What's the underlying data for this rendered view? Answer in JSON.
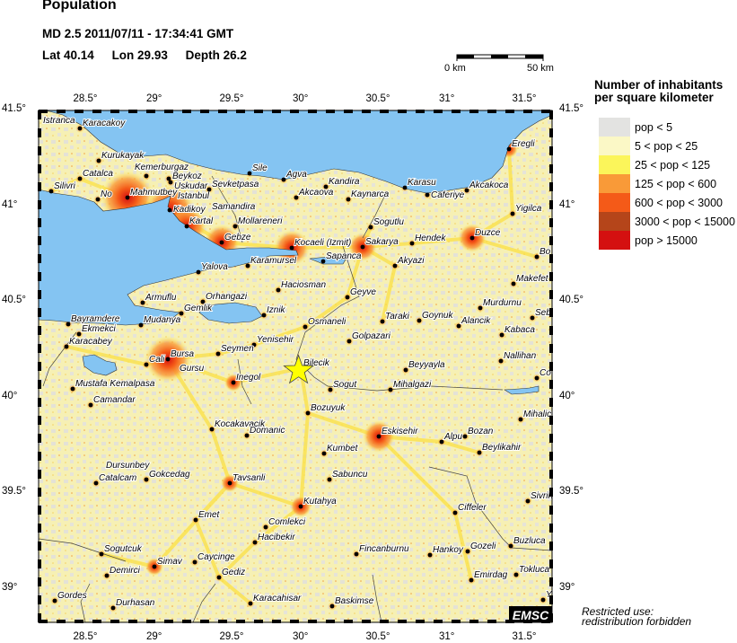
{
  "header": {
    "title": "Population",
    "event_line": "MD 2.5  2011/07/11 - 17:34:41 GMT",
    "lat_label": "Lat 40.14",
    "lon_label": "Lon  29.93",
    "depth_label": "Depth  26.2"
  },
  "scale_bar": {
    "start_label": "0 km",
    "end_label": "50 km"
  },
  "map": {
    "lon_ticks": [
      "28.5°",
      "29°",
      "29.5°",
      "30°",
      "30.5°",
      "31°",
      "31.5°"
    ],
    "lat_ticks": [
      "41.5°",
      "41°",
      "40.5°",
      "40°",
      "39.5°",
      "39°"
    ],
    "epicenter": {
      "lat": 40.14,
      "lon": 29.93,
      "marker": "star-icon",
      "color": "#ffff00"
    },
    "colors": {
      "sea": "#84c4f2",
      "land_base": "#f6f0b4",
      "border": "#000000"
    },
    "cities": [
      "Istranca",
      "Karacakoy",
      "Kurukayak",
      "Catalca",
      "Silivri",
      "No",
      "Mahmutbey",
      "Kemerburgaz",
      "Beykoz",
      "Uskudar",
      "Istanbul",
      "Sevketpasa",
      "Samandira",
      "Kadikoy",
      "Kartal",
      "Mollareneri",
      "Gebze",
      "Sile",
      "Agva",
      "Akcaova",
      "Kandira",
      "Kaynarca",
      "Karasu",
      "Caferiye",
      "Akcakoca",
      "Eregli",
      "Yigilca",
      "Sogutlu",
      "Duzce",
      "Hendek",
      "Sakarya",
      "Kocaeli (Izmit)",
      "Sapanca",
      "Akyazi",
      "Karamursel",
      "Yalova",
      "Haciosman",
      "Bo",
      "Makefet",
      "Armuflu",
      "Orhangazi",
      "Gemlik",
      "Iznik",
      "Geyve",
      "Mudanya",
      "Bayramdere",
      "Ekmekci",
      "Osmaneli",
      "Taraki",
      "Goynuk",
      "Alancik",
      "Murdurnu",
      "Seb",
      "Kabaca",
      "Yenisehir",
      "Golpazari",
      "Karacabey",
      "Seymen",
      "Gursu",
      "Bursa",
      "Cali",
      "Nallihan",
      "Bilecik",
      "Beyyayla",
      "Co",
      "Mustafa Kemalpasa",
      "Inegol",
      "Sogut",
      "Mihalgazi",
      "Camandar",
      "Bozuyuk",
      "Mihalic",
      "Kocakavacik",
      "Domanic",
      "Eskisehir",
      "Alpu",
      "Bozan",
      "Beylikahir",
      "Kumbet",
      "Sabuncu",
      "Dursunbey",
      "Catalcam",
      "Gokcedag",
      "Tavsanli",
      "Kutahya",
      "Sivrih",
      "Ciffeler",
      "Emet",
      "Comlekci",
      "Hacibekir",
      "Sogutcuk",
      "Simav",
      "Caycinge",
      "Fincanburnu",
      "Hankoy",
      "Gozeli",
      "Buzluca",
      "Demirci",
      "Gediz",
      "Emirdag",
      "Tokluca",
      "Gordes",
      "Durhasan",
      "Karacahisar",
      "Baskimse",
      "Y"
    ],
    "logo": "EMSC"
  },
  "legend": {
    "title_line1": "Number of inhabitants",
    "title_line2": "per square kilometer",
    "items": [
      {
        "label": "pop < 5",
        "color": "#e3e3e1"
      },
      {
        "label": "5 < pop < 25",
        "color": "#fbf8c6"
      },
      {
        "label": "25 < pop < 125",
        "color": "#fbf55a"
      },
      {
        "label": "125 < pop < 600",
        "color": "#f99a38"
      },
      {
        "label": "600 < pop < 3000",
        "color": "#f45a18"
      },
      {
        "label": "3000 < pop < 15000",
        "color": "#b5451a"
      },
      {
        "label": "pop > 15000",
        "color": "#d41010"
      }
    ]
  },
  "footer": {
    "restricted_line1": "Restricted use:",
    "restricted_line2": "redistribution forbidden"
  }
}
